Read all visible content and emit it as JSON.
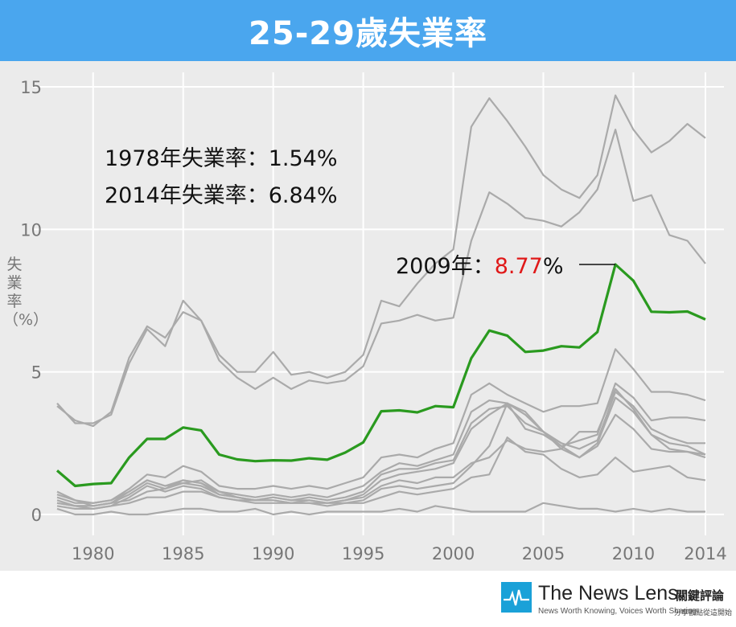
{
  "header": {
    "title": "25-29歲失業率"
  },
  "chart_data": {
    "type": "line",
    "title": "25-29歲失業率",
    "ylabel": "失業率（%）",
    "xlabel": "",
    "xlim": [
      1978,
      2014
    ],
    "ylim": [
      0,
      15
    ],
    "grid": true,
    "x_ticks": [
      1980,
      1985,
      1990,
      1995,
      2000,
      2005,
      2010,
      2014
    ],
    "y_ticks": [
      0,
      5,
      10,
      15
    ],
    "x": [
      1978,
      1979,
      1980,
      1981,
      1982,
      1983,
      1984,
      1985,
      1986,
      1987,
      1988,
      1989,
      1990,
      1991,
      1992,
      1993,
      1994,
      1995,
      1996,
      1997,
      1998,
      1999,
      2000,
      2001,
      2002,
      2003,
      2004,
      2005,
      2006,
      2007,
      2008,
      2009,
      2010,
      2011,
      2012,
      2013,
      2014
    ],
    "highlight_color": "#2a9a1f",
    "background_color": "#aaaaaa",
    "highlight": {
      "values": [
        1.54,
        1.0,
        1.07,
        1.1,
        2.0,
        2.65,
        2.65,
        3.05,
        2.95,
        2.1,
        1.93,
        1.87,
        1.9,
        1.89,
        1.97,
        1.92,
        2.17,
        2.53,
        3.62,
        3.65,
        3.58,
        3.8,
        3.76,
        5.48,
        6.45,
        6.27,
        5.7,
        5.75,
        5.9,
        5.86,
        6.4,
        8.77,
        8.2,
        7.11,
        7.09,
        7.12,
        6.84
      ]
    },
    "series": [
      {
        "values": [
          3.9,
          3.2,
          3.2,
          3.5,
          5.3,
          6.5,
          5.9,
          7.5,
          6.8,
          5.6,
          5.0,
          5.0,
          5.7,
          4.9,
          5.0,
          4.8,
          5.0,
          5.6,
          7.5,
          7.3,
          8.1,
          8.8,
          9.3,
          13.6,
          14.6,
          13.8,
          12.9,
          11.9,
          11.4,
          11.1,
          11.9,
          14.7,
          13.5,
          12.7,
          13.1,
          13.7,
          13.2
        ]
      },
      {
        "values": [
          3.8,
          3.3,
          3.1,
          3.6,
          5.5,
          6.6,
          6.2,
          7.1,
          6.8,
          5.4,
          4.8,
          4.4,
          4.8,
          4.4,
          4.7,
          4.6,
          4.7,
          5.2,
          6.7,
          6.8,
          7.0,
          6.8,
          6.9,
          9.6,
          11.3,
          10.9,
          10.4,
          10.3,
          10.1,
          10.6,
          11.4,
          13.5,
          11.0,
          11.2,
          9.8,
          9.6,
          8.8
        ]
      },
      {
        "values": [
          0.7,
          0.5,
          0.4,
          0.5,
          0.9,
          1.4,
          1.3,
          1.7,
          1.5,
          1.0,
          0.9,
          0.9,
          1.0,
          0.9,
          1.0,
          0.9,
          1.1,
          1.3,
          2.0,
          2.1,
          2.0,
          2.3,
          2.5,
          4.2,
          4.6,
          4.2,
          3.9,
          3.6,
          3.8,
          3.8,
          3.9,
          5.8,
          5.1,
          4.3,
          4.3,
          4.2,
          4.0
        ]
      },
      {
        "values": [
          0.6,
          0.4,
          0.4,
          0.5,
          0.8,
          1.2,
          1.0,
          1.2,
          1.1,
          0.8,
          0.7,
          0.6,
          0.7,
          0.6,
          0.7,
          0.6,
          0.8,
          1.0,
          1.5,
          1.8,
          1.7,
          1.9,
          2.1,
          3.6,
          4.0,
          3.9,
          3.5,
          2.9,
          2.4,
          2.6,
          2.8,
          4.6,
          4.1,
          3.3,
          3.4,
          3.4,
          3.3
        ]
      },
      {
        "values": [
          0.5,
          0.3,
          0.3,
          0.4,
          0.7,
          1.1,
          0.9,
          1.1,
          1.0,
          0.7,
          0.6,
          0.5,
          0.6,
          0.5,
          0.6,
          0.5,
          0.6,
          0.8,
          1.4,
          1.6,
          1.6,
          1.8,
          1.9,
          3.2,
          3.7,
          3.8,
          3.2,
          2.9,
          2.5,
          2.3,
          2.6,
          4.3,
          3.8,
          3.0,
          2.7,
          2.5,
          2.5
        ]
      },
      {
        "values": [
          0.4,
          0.3,
          0.2,
          0.3,
          0.6,
          1.0,
          0.8,
          1.0,
          0.9,
          0.6,
          0.5,
          0.5,
          0.5,
          0.4,
          0.5,
          0.4,
          0.5,
          0.7,
          1.2,
          1.4,
          1.5,
          1.6,
          1.8,
          3.0,
          3.5,
          3.9,
          3.0,
          2.8,
          2.4,
          2.0,
          2.5,
          4.1,
          3.6,
          2.8,
          2.5,
          2.4,
          2.1
        ]
      },
      {
        "values": [
          0.8,
          0.5,
          0.3,
          0.4,
          0.8,
          1.2,
          1.0,
          1.1,
          1.2,
          0.8,
          0.6,
          0.5,
          0.6,
          0.5,
          0.5,
          0.4,
          0.5,
          0.6,
          1.0,
          1.2,
          1.1,
          1.3,
          1.3,
          1.8,
          2.0,
          2.6,
          2.3,
          2.2,
          2.3,
          2.9,
          2.9,
          4.4,
          3.7,
          2.8,
          2.3,
          2.2,
          2.0
        ]
      },
      {
        "values": [
          0.4,
          0.3,
          0.3,
          0.4,
          0.5,
          0.8,
          0.9,
          1.2,
          1.1,
          0.7,
          0.6,
          0.5,
          0.5,
          0.4,
          0.4,
          0.4,
          0.4,
          0.5,
          0.9,
          1.0,
          0.9,
          1.0,
          1.1,
          1.7,
          2.4,
          3.9,
          3.6,
          2.9,
          2.3,
          2.0,
          2.4,
          3.5,
          3.0,
          2.3,
          2.2,
          2.2,
          2.1
        ]
      },
      {
        "values": [
          0.3,
          0.2,
          0.2,
          0.3,
          0.4,
          0.6,
          0.6,
          0.8,
          0.8,
          0.6,
          0.5,
          0.4,
          0.4,
          0.4,
          0.4,
          0.3,
          0.4,
          0.4,
          0.6,
          0.8,
          0.7,
          0.8,
          0.9,
          1.3,
          1.4,
          2.7,
          2.2,
          2.1,
          1.6,
          1.3,
          1.4,
          2.0,
          1.5,
          1.6,
          1.7,
          1.3,
          1.2
        ]
      },
      {
        "values": [
          0.2,
          0.0,
          0.0,
          0.1,
          0.0,
          0.0,
          0.1,
          0.2,
          0.2,
          0.1,
          0.1,
          0.2,
          0.0,
          0.1,
          0.0,
          0.1,
          0.1,
          0.1,
          0.1,
          0.2,
          0.1,
          0.3,
          0.2,
          0.1,
          0.1,
          0.1,
          0.1,
          0.4,
          0.3,
          0.2,
          0.2,
          0.1,
          0.2,
          0.1,
          0.2,
          0.1,
          0.1
        ]
      }
    ],
    "annotations": [
      {
        "text": "1978年失業率：1.54%"
      },
      {
        "text": "2014年失業率：6.84%"
      },
      {
        "prefix": "2009年：",
        "value": "8.77",
        "suffix": "%",
        "value_color": "#e01818"
      }
    ]
  },
  "footer": {
    "brand": "The News Lens",
    "tagline": "News Worth Knowing, Voices Worth Sharing",
    "brand_cn": "關鍵評論",
    "brand_cn_sub": "分享觀點從這開始"
  }
}
